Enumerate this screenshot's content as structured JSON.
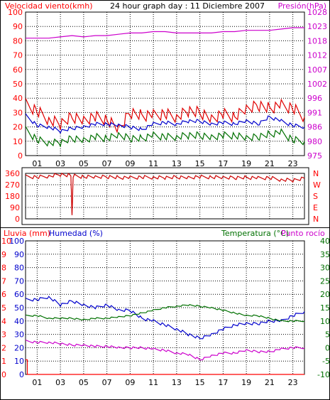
{
  "header": {
    "title": "24 hour graph day : 11 Diciembre 2007",
    "wind_label": "Velocidad viento(kmh)",
    "pressure_label": "Presión(hPa)"
  },
  "colors": {
    "wind_gust": "#e00000",
    "wind_avg": "#0000cc",
    "wind_min": "#007000",
    "pressure": "#cc00cc",
    "direction": "#cc0000",
    "rain": "#ff0000",
    "humidity": "#0000cc",
    "temperature": "#007000",
    "dewpoint": "#cc00cc",
    "axis_red": "#ff0000",
    "axis_blue": "#0000cc",
    "axis_green": "#007000",
    "axis_magenta": "#cc00cc"
  },
  "chart_data": [
    {
      "type": "line",
      "title": "24 hour graph day : 11 Diciembre 2007",
      "ylabel": "Velocidad viento(kmh)",
      "y2label": "Presión(hPa)",
      "x_ticks": [
        "01",
        "03",
        "05",
        "07",
        "09",
        "11",
        "13",
        "15",
        "17",
        "19",
        "21",
        "23"
      ],
      "x_range": [
        0,
        24
      ],
      "ylim": [
        0,
        100
      ],
      "y_ticks": [
        0,
        10,
        20,
        30,
        40,
        50,
        60,
        70,
        80,
        90,
        100
      ],
      "y2lim": [
        975,
        1030
      ],
      "y2_ticks": [
        975,
        980,
        986,
        991,
        996,
        1002,
        1007,
        1012,
        1018,
        1023,
        1028
      ],
      "grid": true,
      "series": [
        {
          "key": "gust",
          "axis": "left",
          "points": [
            [
              0,
              36
            ],
            [
              1,
              31
            ],
            [
              2,
              25
            ],
            [
              3,
              22
            ],
            [
              4,
              27
            ],
            [
              5,
              25
            ],
            [
              6,
              27
            ],
            [
              7,
              25
            ],
            [
              8,
              18
            ],
            [
              9,
              30
            ],
            [
              10,
              28
            ],
            [
              11,
              28
            ],
            [
              12,
              29
            ],
            [
              13,
              27
            ],
            [
              14,
              31
            ],
            [
              15,
              30
            ],
            [
              16,
              26
            ],
            [
              17,
              29
            ],
            [
              18,
              27
            ],
            [
              19,
              32
            ],
            [
              20,
              35
            ],
            [
              21,
              33
            ],
            [
              22,
              35
            ],
            [
              23,
              33
            ],
            [
              24,
              27
            ]
          ]
        },
        {
          "key": "avg",
          "axis": "left",
          "points": [
            [
              0,
              28
            ],
            [
              1,
              21
            ],
            [
              2,
              20
            ],
            [
              3,
              17
            ],
            [
              4,
              19
            ],
            [
              5,
              20
            ],
            [
              6,
              22
            ],
            [
              7,
              22
            ],
            [
              8,
              21
            ],
            [
              9,
              20
            ],
            [
              10,
              18
            ],
            [
              11,
              22
            ],
            [
              12,
              23
            ],
            [
              13,
              22
            ],
            [
              14,
              24
            ],
            [
              15,
              24
            ],
            [
              16,
              22
            ],
            [
              17,
              23
            ],
            [
              18,
              22
            ],
            [
              19,
              24
            ],
            [
              20,
              22
            ],
            [
              21,
              27
            ],
            [
              22,
              24
            ],
            [
              23,
              21
            ],
            [
              24,
              20
            ]
          ]
        },
        {
          "key": "min",
          "axis": "left",
          "points": [
            [
              0,
              18
            ],
            [
              1,
              11
            ],
            [
              2,
              9
            ],
            [
              3,
              9
            ],
            [
              4,
              12
            ],
            [
              5,
              11
            ],
            [
              6,
              13
            ],
            [
              7,
              12
            ],
            [
              8,
              14
            ],
            [
              9,
              12
            ],
            [
              10,
              12
            ],
            [
              11,
              14
            ],
            [
              12,
              13
            ],
            [
              13,
              13
            ],
            [
              14,
              14
            ],
            [
              15,
              14
            ],
            [
              16,
              13
            ],
            [
              17,
              14
            ],
            [
              18,
              14
            ],
            [
              19,
              12
            ],
            [
              20,
              13
            ],
            [
              21,
              15
            ],
            [
              22,
              16
            ],
            [
              23,
              11
            ],
            [
              24,
              10
            ]
          ]
        },
        {
          "key": "pressure",
          "axis": "right",
          "points": [
            [
              0,
              1020
            ],
            [
              1,
              1020
            ],
            [
              2,
              1020
            ],
            [
              3,
              1020.5
            ],
            [
              4,
              1021
            ],
            [
              5,
              1020.5
            ],
            [
              6,
              1021
            ],
            [
              7,
              1021
            ],
            [
              8,
              1021.5
            ],
            [
              9,
              1022
            ],
            [
              10,
              1022
            ],
            [
              11,
              1022.5
            ],
            [
              12,
              1022.5
            ],
            [
              13,
              1022
            ],
            [
              14,
              1022
            ],
            [
              15,
              1022
            ],
            [
              16,
              1022
            ],
            [
              17,
              1022.5
            ],
            [
              18,
              1022.5
            ],
            [
              19,
              1023
            ],
            [
              20,
              1023
            ],
            [
              21,
              1023
            ],
            [
              22,
              1023.5
            ],
            [
              23,
              1024
            ],
            [
              24,
              1024
            ]
          ]
        }
      ]
    },
    {
      "type": "line",
      "ylabel": "",
      "x_range": [
        0,
        24
      ],
      "ylim": [
        0,
        360
      ],
      "y_ticks": [
        0,
        90,
        180,
        270,
        360
      ],
      "y2_ticks": [
        "N",
        "E",
        "S",
        "W",
        "N"
      ],
      "series": [
        {
          "key": "direction",
          "axis": "left",
          "points": [
            [
              0,
              335
            ],
            [
              1,
              330
            ],
            [
              2,
              338
            ],
            [
              3,
              350
            ],
            [
              3.9,
              342
            ],
            [
              4,
              20
            ],
            [
              4.1,
              340
            ],
            [
              5,
              333
            ],
            [
              6,
              330
            ],
            [
              7,
              333
            ],
            [
              8,
              328
            ],
            [
              9,
              325
            ],
            [
              10,
              330
            ],
            [
              11,
              328
            ],
            [
              12,
              326
            ],
            [
              13,
              330
            ],
            [
              14,
              328
            ],
            [
              15,
              332
            ],
            [
              16,
              330
            ],
            [
              17,
              326
            ],
            [
              18,
              325
            ],
            [
              19,
              328
            ],
            [
              20,
              322
            ],
            [
              21,
              325
            ],
            [
              22,
              310
            ],
            [
              23,
              305
            ],
            [
              24,
              320
            ]
          ]
        }
      ]
    },
    {
      "type": "line",
      "ylabel": "Lluvia (mm)",
      "y1b_label": "Humedad (%)",
      "y2label": "Temperatura (°C)",
      "y2b_label": "Punto rocío",
      "x_ticks": [
        "01",
        "03",
        "05",
        "07",
        "09",
        "11",
        "13",
        "15",
        "17",
        "19",
        "21",
        "23"
      ],
      "x_range": [
        0,
        24
      ],
      "rain_lim": [
        0,
        10
      ],
      "rain_ticks": [
        0,
        1,
        2,
        3,
        4,
        5,
        6,
        7,
        8,
        9,
        10
      ],
      "hum_lim": [
        0,
        100
      ],
      "hum_ticks": [
        0,
        10,
        20,
        30,
        40,
        50,
        60,
        70,
        80,
        90,
        100
      ],
      "temp_lim": [
        -10,
        40
      ],
      "temp_ticks": [
        -10,
        -5,
        0,
        5,
        10,
        15,
        20,
        25,
        30,
        35,
        40
      ],
      "series": [
        {
          "key": "rain",
          "axis": "rain",
          "points": [
            [
              0,
              1.1
            ],
            [
              0.15,
              1.1
            ],
            [
              0.15,
              0
            ],
            [
              24,
              0
            ]
          ]
        },
        {
          "key": "humidity",
          "axis": "hum",
          "points": [
            [
              0,
              56
            ],
            [
              1,
              56
            ],
            [
              2,
              58
            ],
            [
              3,
              52
            ],
            [
              4,
              55
            ],
            [
              5,
              52
            ],
            [
              6,
              50
            ],
            [
              7,
              52
            ],
            [
              8,
              48
            ],
            [
              9,
              48
            ],
            [
              10,
              42
            ],
            [
              11,
              40
            ],
            [
              12,
              37
            ],
            [
              13,
              34
            ],
            [
              14,
              30
            ],
            [
              15,
              27
            ],
            [
              16,
              30
            ],
            [
              17,
              34
            ],
            [
              18,
              37
            ],
            [
              19,
              38
            ],
            [
              20,
              38
            ],
            [
              21,
              40
            ],
            [
              22,
              40
            ],
            [
              23,
              44
            ],
            [
              24,
              47
            ]
          ]
        },
        {
          "key": "temperature",
          "axis": "temp",
          "points": [
            [
              0,
              12
            ],
            [
              1,
              12
            ],
            [
              2,
              11
            ],
            [
              3,
              11
            ],
            [
              4,
              11
            ],
            [
              5,
              10.5
            ],
            [
              6,
              11
            ],
            [
              7,
              11
            ],
            [
              8,
              11.5
            ],
            [
              9,
              12
            ],
            [
              10,
              13
            ],
            [
              11,
              14
            ],
            [
              12,
              15
            ],
            [
              13,
              15.5
            ],
            [
              14,
              16
            ],
            [
              15,
              15.5
            ],
            [
              16,
              15
            ],
            [
              17,
              14
            ],
            [
              18,
              13
            ],
            [
              19,
              12
            ],
            [
              20,
              12
            ],
            [
              21,
              11
            ],
            [
              22,
              10
            ],
            [
              23,
              10
            ],
            [
              24,
              10
            ]
          ]
        },
        {
          "key": "dewpoint",
          "axis": "temp",
          "points": [
            [
              0,
              2.5
            ],
            [
              1,
              2
            ],
            [
              2,
              2
            ],
            [
              3,
              1.5
            ],
            [
              4,
              1
            ],
            [
              5,
              1
            ],
            [
              6,
              0.5
            ],
            [
              7,
              0.5
            ],
            [
              8,
              0
            ],
            [
              9,
              0
            ],
            [
              10,
              0
            ],
            [
              11,
              -0.5
            ],
            [
              12,
              -1
            ],
            [
              13,
              -2
            ],
            [
              14,
              -2.5
            ],
            [
              15,
              -4.5
            ],
            [
              16,
              -3
            ],
            [
              17,
              -2
            ],
            [
              18,
              -2
            ],
            [
              19,
              -1
            ],
            [
              20,
              -1.5
            ],
            [
              21,
              -1.5
            ],
            [
              22,
              -0.5
            ],
            [
              23,
              0
            ],
            [
              24,
              0
            ]
          ]
        }
      ]
    }
  ],
  "panel2_label_wind_dir": [
    "N",
    "W",
    "S",
    "E",
    "N"
  ],
  "panel3": {
    "rain_label": "Lluvia (mm)",
    "hum_label": "Humedad (%)",
    "temp_label": "Temperatura (°C)",
    "dew_label": "Punto rocío"
  }
}
